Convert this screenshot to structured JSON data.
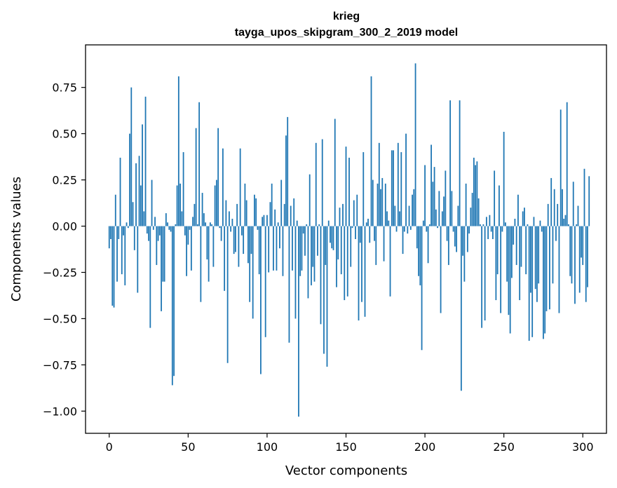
{
  "chart_data": {
    "type": "bar",
    "title": "krieg",
    "subtitle": "tayga_upos_skipgram_300_2_2019 model",
    "xlabel": "Vector components",
    "ylabel": "Components values",
    "xlim": [
      -15,
      315
    ],
    "ylim": [
      -1.12,
      0.98
    ],
    "x_ticks": [
      0,
      50,
      100,
      150,
      200,
      250,
      300
    ],
    "y_ticks": [
      -1.0,
      -0.75,
      -0.5,
      -0.25,
      0.0,
      0.25,
      0.5,
      0.75
    ],
    "x_tick_labels": [
      "0",
      "50",
      "100",
      "150",
      "200",
      "250",
      "300"
    ],
    "y_tick_labels": [
      "−1.00",
      "−0.75",
      "−0.50",
      "−0.25",
      "0.00",
      "0.25",
      "0.50",
      "0.75"
    ],
    "grid": false,
    "bar_color": "#1f77b4",
    "values": [
      -0.12,
      -0.07,
      -0.43,
      -0.44,
      0.17,
      -0.3,
      -0.07,
      0.37,
      -0.26,
      -0.05,
      -0.32,
      0.02,
      -0.01,
      0.5,
      0.75,
      0.13,
      -0.13,
      0.34,
      -0.36,
      0.38,
      0.22,
      0.55,
      0.08,
      0.7,
      -0.04,
      -0.08,
      -0.55,
      0.25,
      -0.02,
      0.05,
      -0.21,
      -0.08,
      -0.05,
      -0.46,
      -0.3,
      -0.3,
      0.07,
      0.02,
      -0.02,
      -0.03,
      -0.86,
      -0.81,
      0.01,
      0.22,
      0.81,
      0.23,
      0.08,
      0.4,
      -0.05,
      -0.27,
      -0.1,
      -0.02,
      -0.24,
      0.05,
      0.12,
      0.53,
      0.01,
      0.67,
      -0.41,
      0.18,
      0.07,
      0.02,
      -0.18,
      -0.3,
      0.02,
      0.01,
      -0.22,
      0.22,
      0.25,
      0.53,
      -0.01,
      -0.08,
      0.42,
      -0.35,
      0.14,
      -0.74,
      0.08,
      -0.03,
      0.04,
      -0.15,
      -0.14,
      0.12,
      -0.22,
      0.42,
      -0.05,
      -0.15,
      0.23,
      0.14,
      -0.2,
      -0.41,
      -0.15,
      -0.5,
      0.17,
      0.15,
      -0.02,
      -0.26,
      -0.8,
      0.05,
      0.06,
      -0.6,
      0.06,
      -0.25,
      0.13,
      0.23,
      -0.24,
      0.09,
      -0.24,
      0.02,
      -0.12,
      0.25,
      -0.27,
      0.12,
      0.49,
      0.59,
      -0.63,
      0.11,
      -0.24,
      0.15,
      -0.5,
      0.03,
      -1.03,
      -0.27,
      -0.24,
      -0.04,
      -0.16,
      0.01,
      -0.39,
      0.28,
      -0.32,
      -0.22,
      -0.3,
      0.45,
      -0.16,
      0.01,
      -0.53,
      0.47,
      -0.69,
      -0.21,
      -0.76,
      0.03,
      -0.09,
      -0.12,
      -0.13,
      0.58,
      -0.33,
      -0.18,
      0.1,
      -0.26,
      0.12,
      -0.4,
      0.43,
      -0.38,
      0.37,
      -0.22,
      -0.01,
      0.14,
      -0.07,
      0.17,
      -0.51,
      -0.09,
      -0.41,
      0.4,
      -0.49,
      0.02,
      0.04,
      -0.09,
      0.81,
      0.25,
      -0.08,
      -0.21,
      0.23,
      0.45,
      0.2,
      0.26,
      -0.19,
      0.23,
      0.08,
      0.03,
      -0.38,
      0.41,
      0.41,
      0.11,
      -0.03,
      0.45,
      0.08,
      0.4,
      -0.15,
      -0.03,
      0.5,
      -0.04,
      0.11,
      -0.02,
      0.17,
      0.2,
      0.88,
      -0.12,
      -0.27,
      -0.32,
      -0.67,
      0.03,
      0.33,
      -0.03,
      -0.2,
      0.01,
      0.44,
      0.24,
      0.32,
      0.09,
      -0.01,
      0.19,
      -0.47,
      0.08,
      0.16,
      0.3,
      -0.08,
      -0.21,
      0.68,
      0.19,
      -0.03,
      -0.11,
      -0.14,
      0.11,
      0.68,
      -0.89,
      -0.16,
      -0.3,
      0.23,
      -0.14,
      -0.04,
      0.1,
      0.18,
      0.37,
      0.33,
      0.35,
      0.15,
      0.01,
      -0.55,
      0.01,
      -0.51,
      0.05,
      -0.07,
      0.06,
      -0.03,
      -0.07,
      0.3,
      -0.4,
      -0.26,
      0.22,
      -0.47,
      -0.03,
      0.51,
      0.02,
      -0.3,
      -0.48,
      -0.58,
      -0.28,
      -0.1,
      0.04,
      -0.21,
      0.17,
      -0.4,
      -0.22,
      0.08,
      0.1,
      -0.26,
      0.01,
      -0.62,
      -0.36,
      -0.6,
      0.05,
      -0.34,
      -0.41,
      -0.31,
      0.03,
      -0.03,
      -0.61,
      -0.58,
      -0.46,
      0.12,
      -0.45,
      0.26,
      -0.31,
      0.2,
      -0.08,
      0.12,
      -0.47,
      0.63,
      0.2,
      0.04,
      0.06,
      0.67,
      0.01,
      -0.27,
      -0.31,
      0.24,
      -0.42,
      0.01,
      0.11,
      -0.36,
      -0.17,
      -0.21,
      0.31,
      -0.41,
      -0.33,
      0.27
    ]
  }
}
